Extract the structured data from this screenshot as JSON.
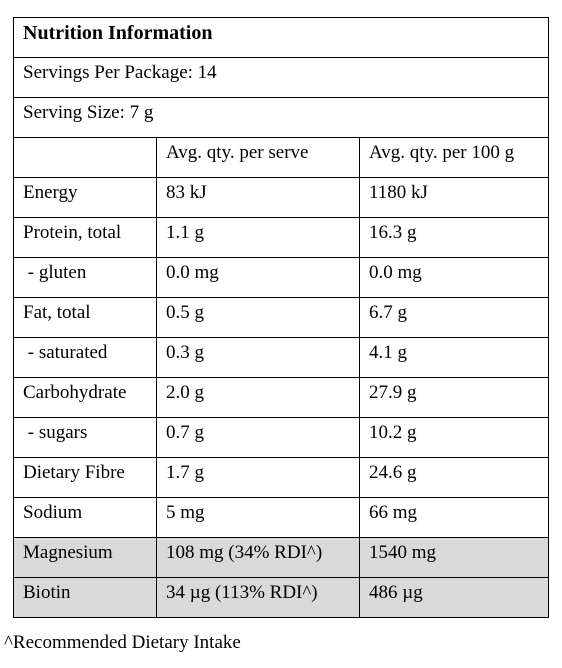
{
  "panel": {
    "title": "Nutrition Information",
    "servings_per_package": "Servings Per Package: 14",
    "serving_size": "Serving Size: 7 g",
    "column_headers": [
      "",
      "Avg. qty. per serve",
      "Avg. qty. per 100 g"
    ],
    "rows": [
      {
        "nutrient": "Energy",
        "per_serve": "83 kJ",
        "per_100g": "1180 kJ"
      },
      {
        "nutrient": "Protein, total",
        "per_serve": "1.1 g",
        "per_100g": "16.3 g"
      },
      {
        "nutrient": " - gluten",
        "per_serve": "0.0 mg",
        "per_100g": "0.0 mg"
      },
      {
        "nutrient": "Fat, total",
        "per_serve": "0.5 g",
        "per_100g": "6.7 g"
      },
      {
        "nutrient": " - saturated",
        "per_serve": "0.3 g",
        "per_100g": "4.1 g"
      },
      {
        "nutrient": "Carbohydrate",
        "per_serve": "2.0 g",
        "per_100g": "27.9 g"
      },
      {
        "nutrient": " - sugars",
        "per_serve": "0.7 g",
        "per_100g": "10.2 g"
      },
      {
        "nutrient": "Dietary Fibre",
        "per_serve": "1.7 g",
        "per_100g": "24.6 g"
      },
      {
        "nutrient": "Sodium",
        "per_serve": "5 mg",
        "per_100g": "66 mg"
      },
      {
        "nutrient": "Magnesium",
        "per_serve": "108 mg (34% RDI^)",
        "per_100g": "1540 mg",
        "highlight": true
      },
      {
        "nutrient": "Biotin",
        "per_serve": "34 µg (113% RDI^)",
        "per_100g": "486 µg",
        "highlight": true
      }
    ]
  },
  "footnote": "^Recommended Dietary Intake",
  "colors": {
    "highlight_row": "#d9d9d9",
    "border": "#000000"
  }
}
